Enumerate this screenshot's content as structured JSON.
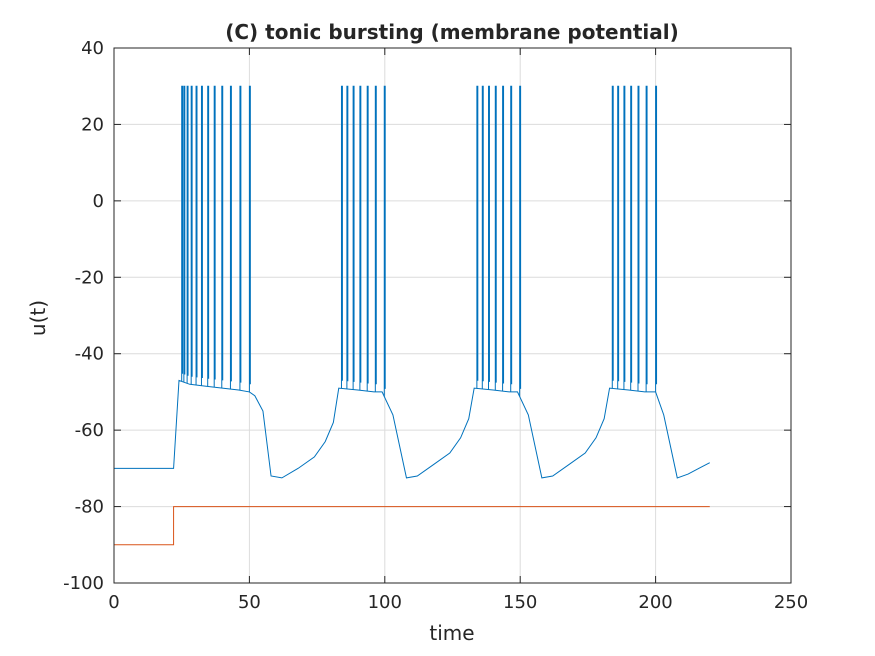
{
  "chart_data": {
    "type": "line",
    "title": "(C) tonic bursting (membrane potential)",
    "xlabel": "time",
    "ylabel": "u(t)",
    "xlim": [
      0,
      250
    ],
    "ylim": [
      -100,
      40
    ],
    "grid": true,
    "x_ticks": [
      0,
      50,
      100,
      150,
      200,
      250
    ],
    "x_tick_labels": [
      "0",
      "50",
      "100",
      "150",
      "200",
      "250"
    ],
    "y_ticks": [
      -100,
      -80,
      -60,
      -40,
      -20,
      0,
      20,
      40
    ],
    "y_tick_labels": [
      "-100",
      "-80",
      "-60",
      "-40",
      "-20",
      "0",
      "20",
      "40"
    ],
    "series": [
      {
        "color": "#0072BD",
        "x": [
          0,
          22,
          24,
          28,
          34,
          40,
          46,
          50,
          52,
          55,
          58,
          62,
          68,
          74,
          78,
          81,
          83,
          90,
          96,
          99,
          103,
          108,
          112,
          118,
          124,
          128,
          131,
          133,
          140,
          146,
          149,
          153,
          158,
          162,
          168,
          174,
          178,
          181,
          183,
          190,
          196,
          200,
          203,
          208,
          212,
          216,
          220
        ],
        "y": [
          -70,
          -70,
          -47,
          -48,
          -48.5,
          -49,
          -49.5,
          -50,
          -51,
          -55,
          -72,
          -72.5,
          -70,
          -67,
          -63,
          -58,
          -49,
          -49.5,
          -50,
          -50,
          -56,
          -72.5,
          -72,
          -69,
          -66,
          -62,
          -57,
          -49,
          -49.5,
          -50,
          -50,
          -56,
          -72.5,
          -72,
          -69,
          -66,
          -62,
          -57,
          -49,
          -49.5,
          -50,
          -50,
          -56,
          -72.5,
          -71.5,
          -70,
          -68.5
        ],
        "spike_times": [
          25,
          25.8,
          27,
          28.5,
          30.3,
          32.3,
          34.6,
          37,
          39.8,
          43,
          46.5,
          50,
          84,
          86,
          88.3,
          90.8,
          93.5,
          96.5,
          99.8,
          134,
          136,
          138.3,
          140.8,
          143.5,
          146.5,
          149.8,
          184,
          186,
          188.3,
          190.8,
          193.5,
          196.5,
          200
        ],
        "spike_peak": 30
      },
      {
        "color": "#D95319",
        "x": [
          0,
          22,
          22,
          220
        ],
        "y": [
          -90,
          -90,
          -80,
          -80
        ]
      }
    ]
  }
}
